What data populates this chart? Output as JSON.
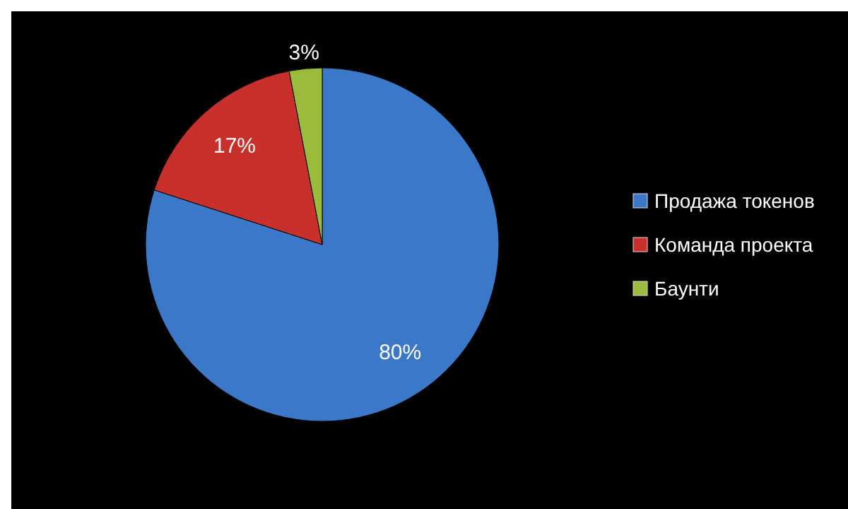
{
  "chart_data": {
    "type": "pie",
    "categories": [
      "Продажа токенов",
      "Команда проекта",
      "Баунти"
    ],
    "values": [
      80,
      17,
      3
    ],
    "colors": [
      "#3c78c8",
      "#c8302c",
      "#9bbb3b"
    ],
    "value_labels": [
      "80%",
      "17%",
      "3%"
    ],
    "legend": "right"
  }
}
